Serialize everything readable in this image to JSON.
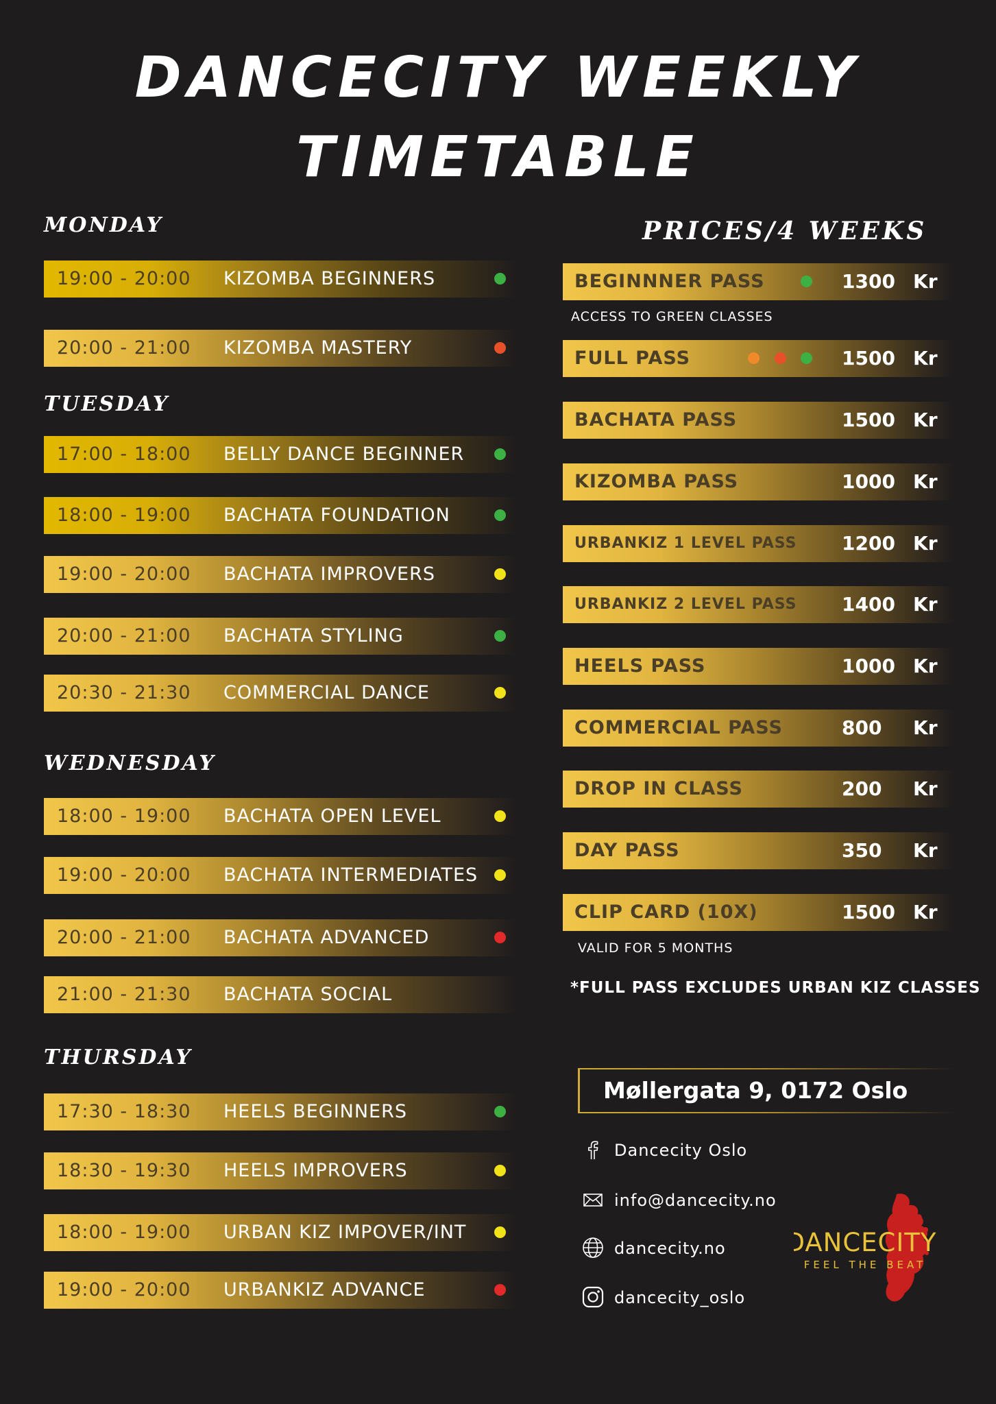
{
  "title": {
    "line1": "DANCECITY WEEKLY",
    "line2": "TIMETABLE"
  },
  "colors": {
    "green": "#3cb043",
    "yellow": "#f2e21a",
    "orange": "#f0892a",
    "red_orange": "#e8502a",
    "red": "#e22a2a",
    "gold": "#f1c64a",
    "background": "#1f1c1d"
  },
  "schedule": {
    "monday": {
      "label": "MONDAY",
      "classes": [
        {
          "time": "19:00 - 20:00",
          "name": "KIZOMBA BEGINNERS",
          "level": "green"
        },
        {
          "time": "20:00 - 21:00",
          "name": "KIZOMBA MASTERY",
          "level": "red_orange"
        }
      ]
    },
    "tuesday": {
      "label": "TUESDAY",
      "classes": [
        {
          "time": "17:00 - 18:00",
          "name": "BELLY DANCE BEGINNER",
          "level": "green"
        },
        {
          "time": "18:00 - 19:00",
          "name": "BACHATA FOUNDATION",
          "level": "green"
        },
        {
          "time": "19:00 - 20:00",
          "name": "BACHATA IMPROVERS",
          "level": "yellow"
        },
        {
          "time": "20:00 - 21:00",
          "name": "BACHATA STYLING",
          "level": "green"
        },
        {
          "time": "20:30 - 21:30",
          "name": "COMMERCIAL DANCE",
          "level": "yellow"
        }
      ]
    },
    "wednesday": {
      "label": "WEDNESDAY",
      "classes": [
        {
          "time": "18:00 - 19:00",
          "name": "BACHATA OPEN LEVEL",
          "level": "yellow"
        },
        {
          "time": "19:00 - 20:00",
          "name": "BACHATA INTERMEDIATES",
          "level": "yellow"
        },
        {
          "time": "20:00 - 21:00",
          "name": "BACHATA ADVANCED",
          "level": "red"
        },
        {
          "time": "21:00 - 21:30",
          "name": "BACHATA SOCIAL",
          "level": ""
        }
      ]
    },
    "thursday": {
      "label": "THURSDAY",
      "classes": [
        {
          "time": "17:30 - 18:30",
          "name": "HEELS BEGINNERS",
          "level": "green"
        },
        {
          "time": "18:30 - 19:30",
          "name": "HEELS IMPROVERS",
          "level": "yellow"
        },
        {
          "time": "18:00 - 19:00",
          "name": "URBAN KIZ IMPOVER/INT",
          "level": "yellow"
        },
        {
          "time": "19:00 - 20:00",
          "name": "URBANKIZ ADVANCE",
          "level": "red"
        }
      ]
    }
  },
  "prices": {
    "heading": "PRICES/4 WEEKS",
    "currency": "Kr",
    "items": [
      {
        "name": "BEGINNNER PASS",
        "price": "1300",
        "dots": [
          "green"
        ]
      },
      {
        "name": "FULL PASS",
        "price": "1500",
        "dots": [
          "orange",
          "red_orange",
          "green"
        ]
      },
      {
        "name": "BACHATA PASS",
        "price": "1500",
        "dots": []
      },
      {
        "name": "KIZOMBA PASS",
        "price": "1000",
        "dots": []
      },
      {
        "name": "URBANKIZ 1 LEVEL PASS",
        "price": "1200",
        "dots": []
      },
      {
        "name": "URBANKIZ 2 LEVEL PASS",
        "price": "1400",
        "dots": []
      },
      {
        "name": "HEELS PASS",
        "price": "1000",
        "dots": []
      },
      {
        "name": "COMMERCIAL PASS",
        "price": "800",
        "dots": []
      },
      {
        "name": "DROP IN CLASS",
        "price": "200",
        "dots": []
      },
      {
        "name": "DAY PASS",
        "price": "350",
        "dots": []
      },
      {
        "name": "CLIP CARD (10X)",
        "price": "1500",
        "dots": []
      }
    ],
    "beginner_note": "ACCESS TO GREEN CLASSES",
    "clipcard_note": "VALID FOR 5 MONTHS",
    "footnote": "*FULL PASS EXCLUDES URBAN KIZ CLASSES"
  },
  "contact": {
    "address": "Møllergata 9, 0172 Oslo",
    "facebook": "Dancecity Oslo",
    "email": "info@dancecity.no",
    "website": "dancecity.no",
    "instagram": "dancecity_oslo",
    "icons": [
      "facebook-icon",
      "mail-icon",
      "globe-icon",
      "instagram-icon"
    ]
  },
  "logo": {
    "name": "DANCECITY",
    "tagline": "FEEL THE BEAT"
  }
}
